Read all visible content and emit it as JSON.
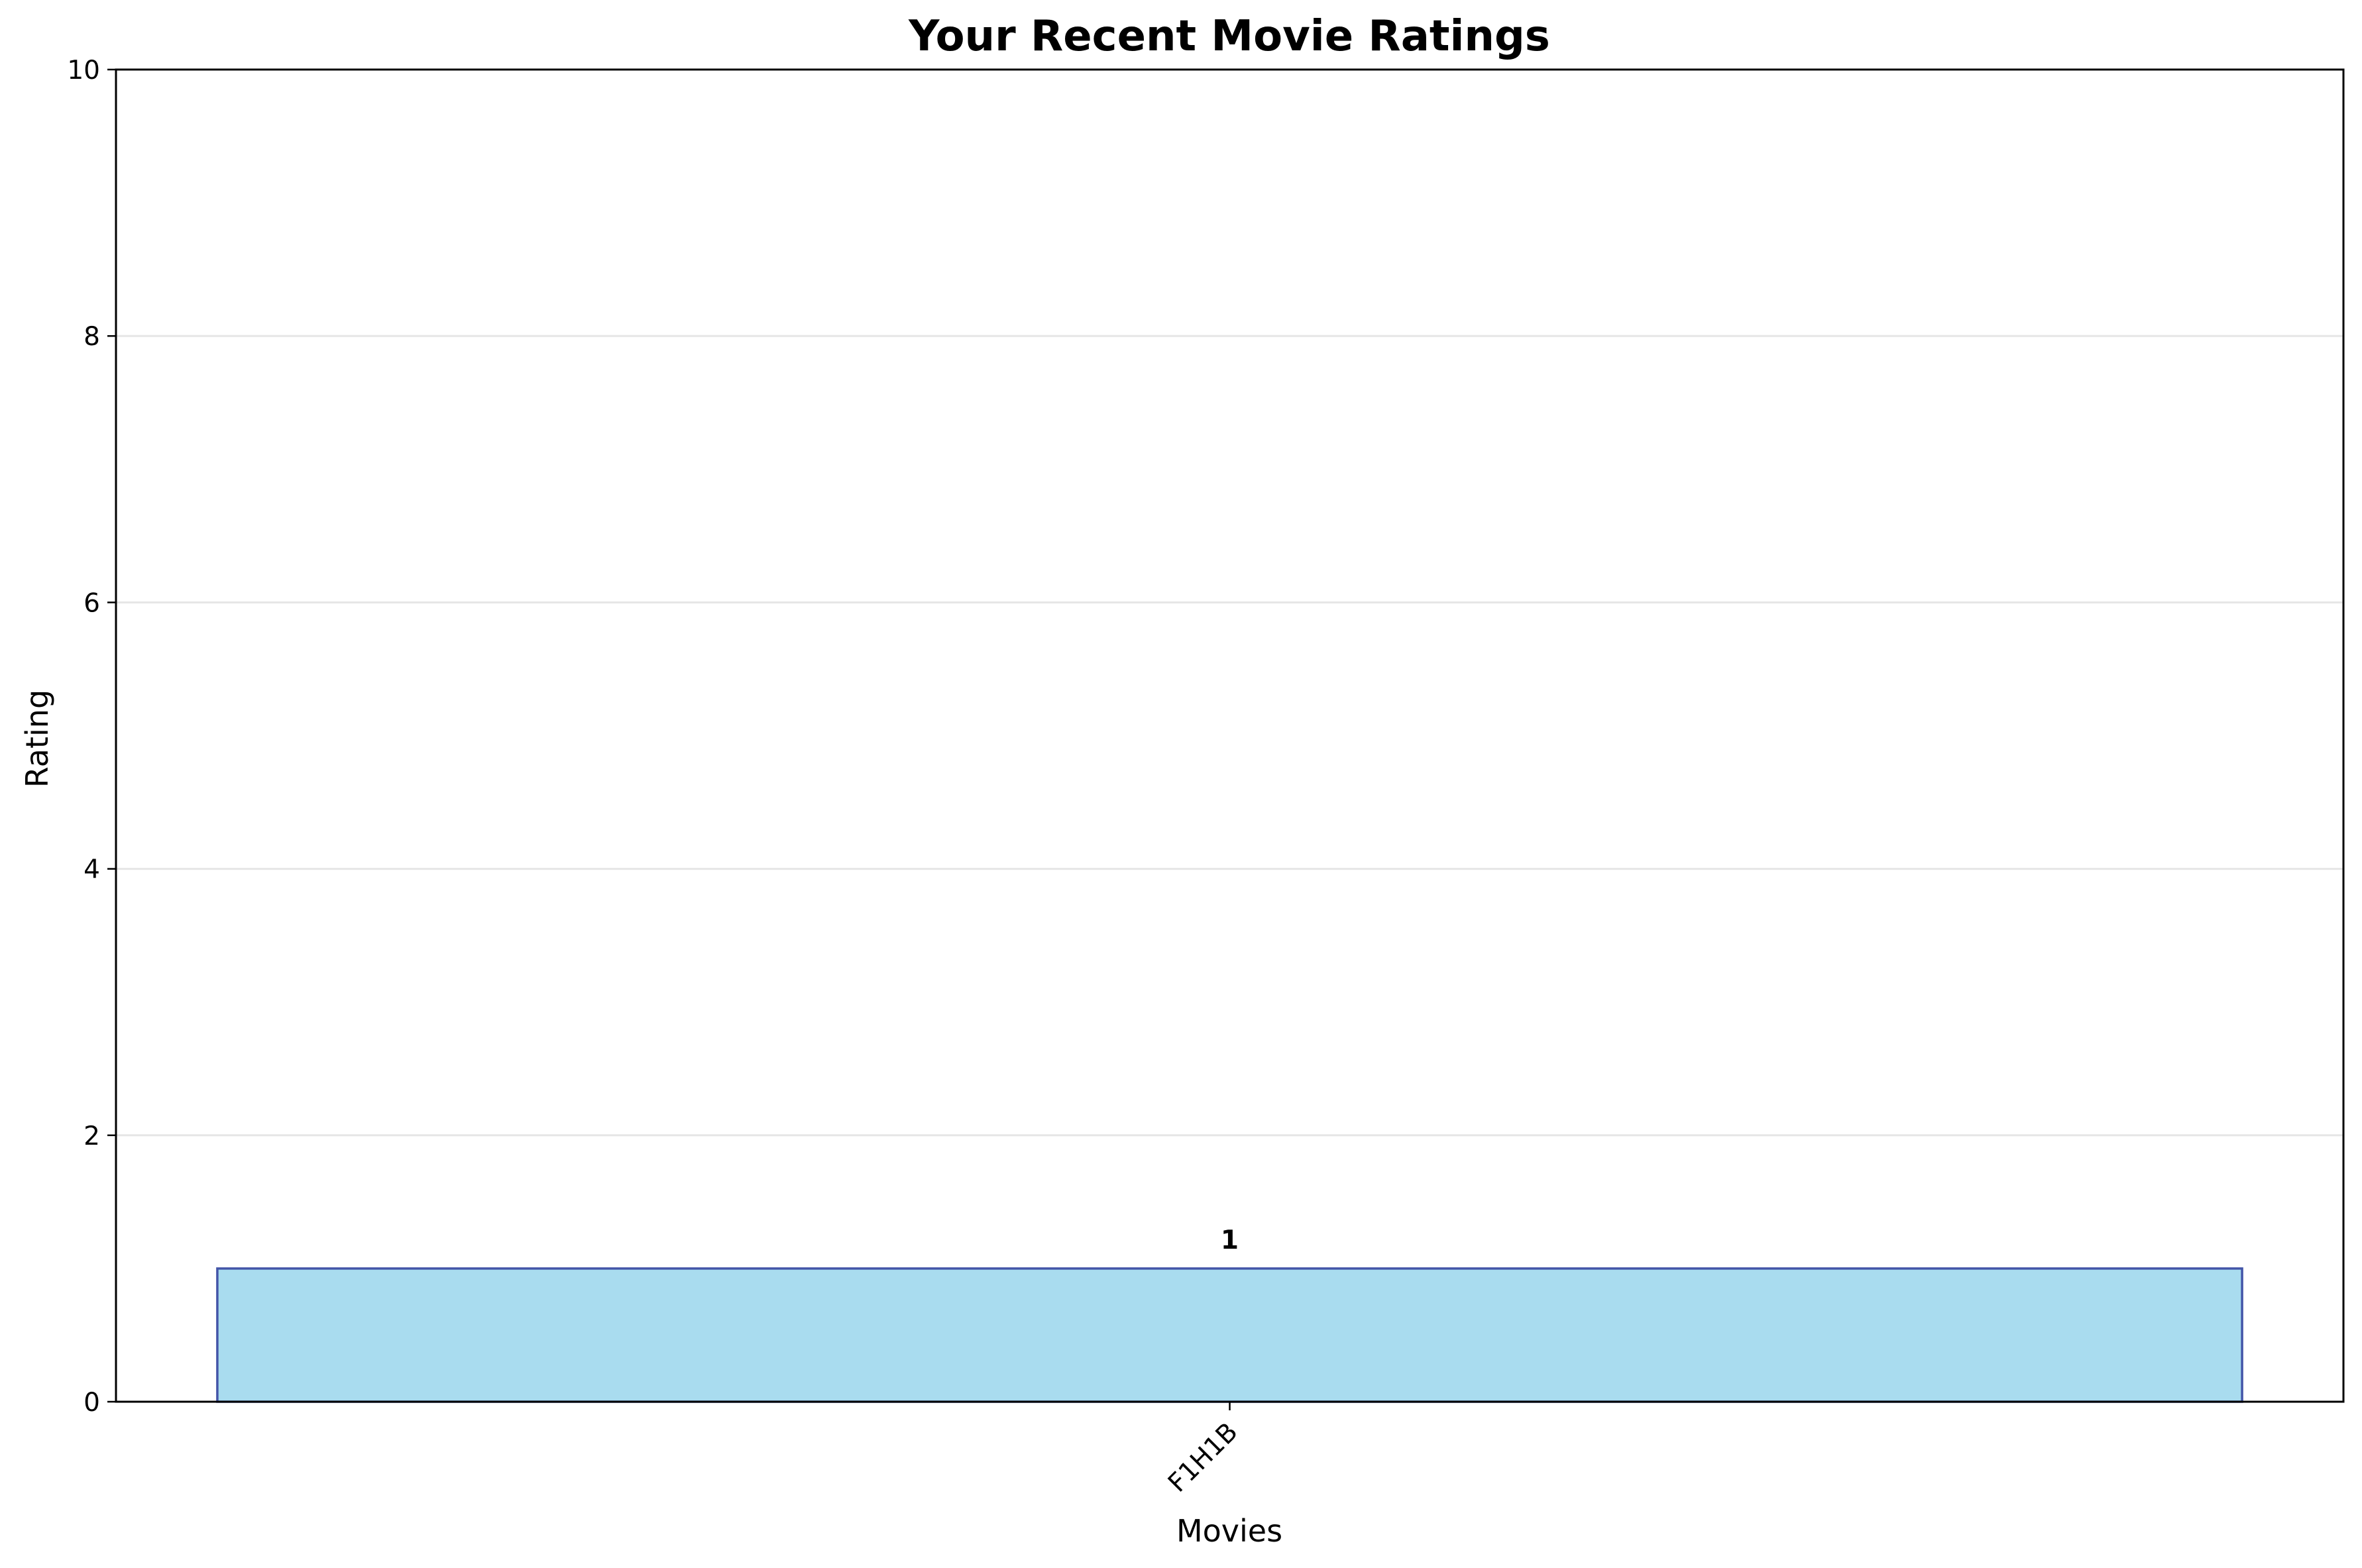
{
  "chart_data": {
    "type": "bar",
    "title": "Your Recent Movie Ratings",
    "xlabel": "Movies",
    "ylabel": "Rating",
    "categories": [
      "F1H1B"
    ],
    "values": [
      1
    ],
    "value_labels": [
      "1"
    ],
    "ylim": [
      0,
      10
    ],
    "yticks": [
      0,
      2,
      4,
      6,
      8,
      10
    ],
    "ytick_labels": [
      "0",
      "2",
      "4",
      "6",
      "8",
      "10"
    ],
    "grid": "y-axis only",
    "legend": "none",
    "colors": {
      "bar_fill": "#a9dcef",
      "bar_edge": "#4355a8",
      "grid": "#e6e6e6",
      "axes": "#000000"
    }
  }
}
